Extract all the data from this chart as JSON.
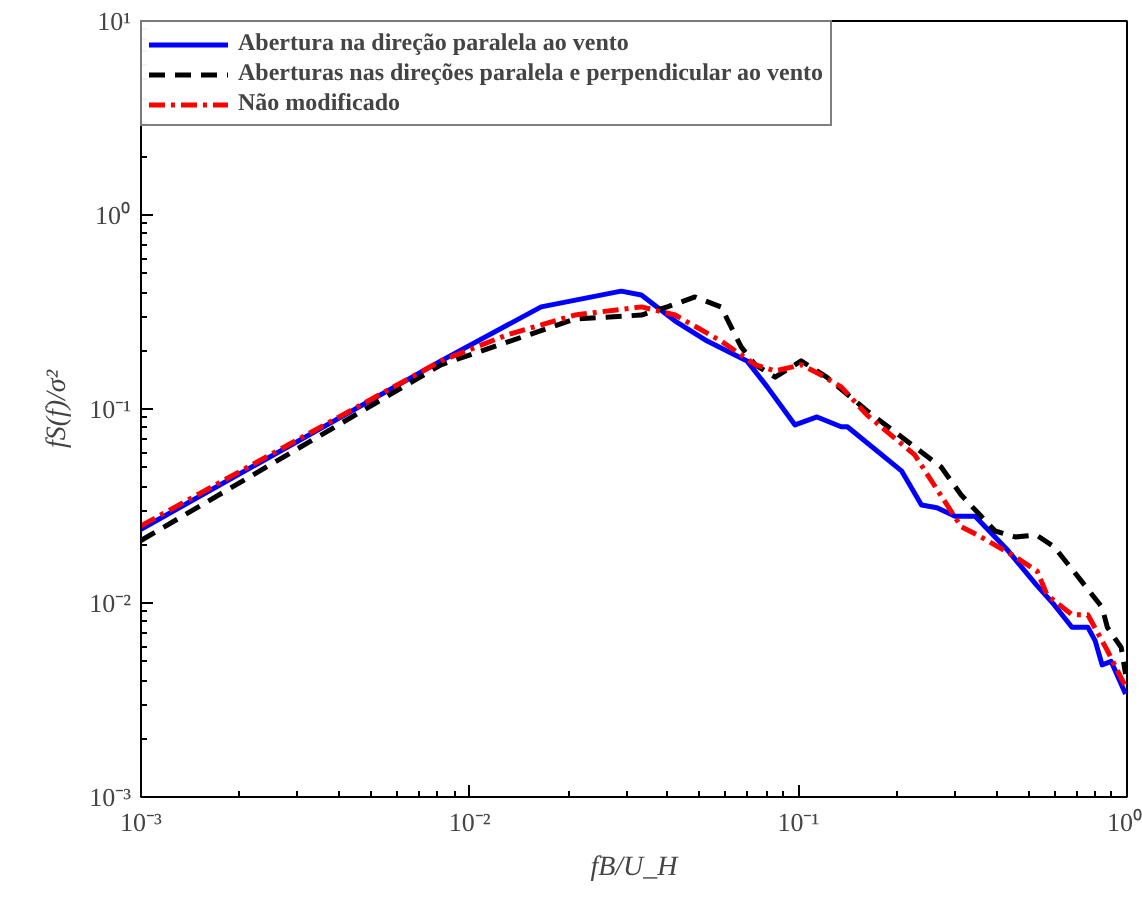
{
  "chart_data": {
    "type": "line",
    "xlabel": "fB/U_H",
    "ylabel": "fS(f)/σ²",
    "log": "xy",
    "grid": false,
    "legend": "top left",
    "xlim": [
      0.001,
      1
    ],
    "ylim": [
      0.001,
      10
    ],
    "xticks": [
      {
        "value": 0.001,
        "label": "10⁻³"
      },
      {
        "value": 0.01,
        "label": "10⁻²"
      },
      {
        "value": 0.1,
        "label": "10⁻¹"
      },
      {
        "value": 1,
        "label": "10⁰"
      }
    ],
    "yticks": [
      {
        "value": 0.001,
        "label": "10⁻³"
      },
      {
        "value": 0.01,
        "label": "10⁻²"
      },
      {
        "value": 0.1,
        "label": "10⁻¹"
      },
      {
        "value": 1,
        "label": "10⁰"
      },
      {
        "value": 10,
        "label": "10¹"
      }
    ],
    "series": [
      {
        "name": "Abertura na direção paralela ao vento",
        "color": "#0000ff",
        "line_style": "solid",
        "x": [
          0.001,
          0.00818,
          0.0165,
          0.0289,
          0.0333,
          0.0422,
          0.0528,
          0.0698,
          0.0804,
          0.0977,
          0.114,
          0.135,
          0.141,
          0.206,
          0.237,
          0.264,
          0.3,
          0.345,
          0.43,
          0.53,
          0.6,
          0.68,
          0.76,
          0.8,
          0.84,
          0.895,
          0.99
        ],
        "values": [
          0.024,
          0.177,
          0.336,
          0.405,
          0.387,
          0.284,
          0.224,
          0.177,
          0.13,
          0.0828,
          0.091,
          0.081,
          0.081,
          0.048,
          0.032,
          0.031,
          0.028,
          0.028,
          0.019,
          0.0124,
          0.0098,
          0.0075,
          0.0075,
          0.0064,
          0.0048,
          0.005,
          0.0034
        ]
      },
      {
        "name": "Aberturas nas direções paralela e perpendicular ao vento",
        "color": "#000000",
        "line_style": "dashed",
        "x": [
          0.001,
          0.00818,
          0.0209,
          0.0333,
          0.0399,
          0.0485,
          0.0582,
          0.067,
          0.074,
          0.085,
          0.102,
          0.122,
          0.162,
          0.226,
          0.272,
          0.313,
          0.397,
          0.457,
          0.53,
          0.6,
          0.726,
          0.84,
          0.871,
          0.96,
          0.99
        ],
        "values": [
          0.021,
          0.169,
          0.291,
          0.305,
          0.336,
          0.378,
          0.336,
          0.209,
          0.169,
          0.146,
          0.177,
          0.146,
          0.0977,
          0.0637,
          0.0502,
          0.036,
          0.0235,
          0.0219,
          0.0224,
          0.0195,
          0.013,
          0.0095,
          0.0075,
          0.0059,
          0.0043
        ]
      },
      {
        "name": "Não modificado",
        "color": "#ff0000",
        "line_style": "dashdot",
        "x": [
          0.001,
          0.00818,
          0.013,
          0.0209,
          0.0333,
          0.0422,
          0.0582,
          0.074,
          0.085,
          0.102,
          0.117,
          0.135,
          0.162,
          0.226,
          0.313,
          0.36,
          0.457,
          0.533,
          0.571,
          0.68,
          0.76,
          0.871,
          0.99
        ],
        "values": [
          0.025,
          0.177,
          0.241,
          0.305,
          0.336,
          0.305,
          0.224,
          0.169,
          0.157,
          0.169,
          0.15,
          0.13,
          0.093,
          0.058,
          0.0247,
          0.0219,
          0.0173,
          0.0146,
          0.011,
          0.0087,
          0.0087,
          0.0057,
          0.0037
        ]
      }
    ]
  }
}
